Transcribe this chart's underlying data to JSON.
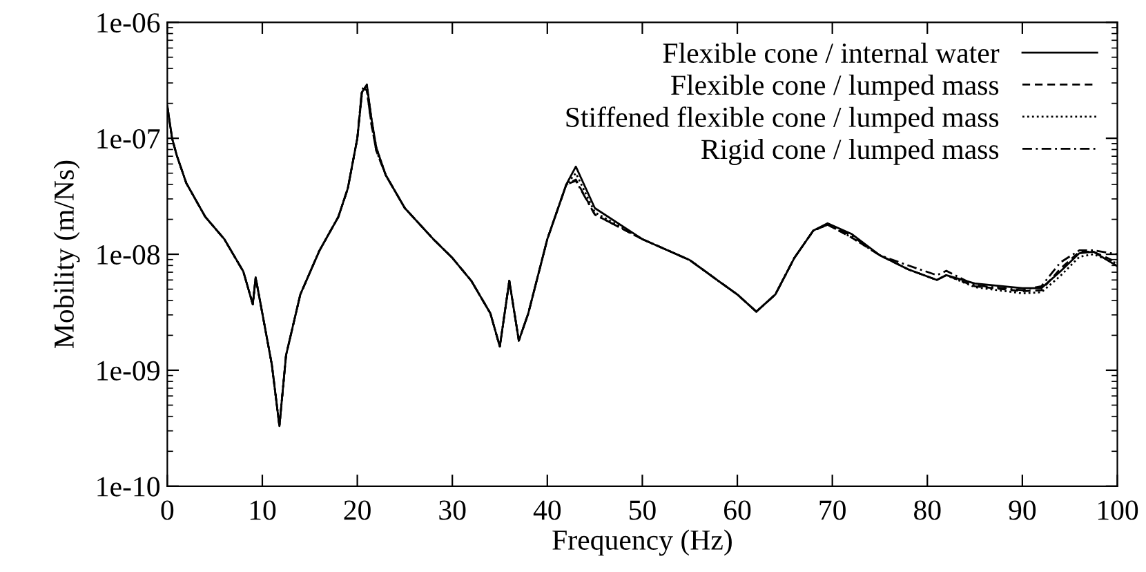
{
  "chart_data": {
    "type": "line",
    "xlabel": "Frequency (Hz)",
    "ylabel": "Mobility (m/Ns)",
    "log": "y",
    "grid": false,
    "legend": "top right",
    "marker": "none",
    "xlim": [
      0,
      100
    ],
    "xticks": [
      0,
      10,
      20,
      30,
      40,
      50,
      60,
      70,
      80,
      90,
      100
    ],
    "ylim": [
      1e-10,
      1e-06
    ],
    "yticks": [
      {
        "value": 1e-10,
        "label": "1e-10"
      },
      {
        "value": 1e-09,
        "label": "1e-09"
      },
      {
        "value": 1e-08,
        "label": "1e-08"
      },
      {
        "value": 1e-07,
        "label": "1e-07"
      },
      {
        "value": 1e-06,
        "label": "1e-06"
      }
    ],
    "x": [
      0,
      0.5,
      1,
      2,
      4,
      6,
      8,
      9,
      9.3,
      10,
      11,
      11.8,
      12.5,
      14,
      16,
      18,
      19,
      20,
      20.5,
      21,
      21.5,
      22,
      23,
      25,
      28,
      30,
      32,
      34,
      35,
      36,
      37,
      38,
      40,
      42,
      43,
      45,
      50,
      55,
      58,
      60,
      62,
      64,
      66,
      68,
      69.5,
      72,
      75,
      78,
      81,
      82,
      85,
      90,
      92,
      94,
      96,
      97.5,
      100
    ],
    "series": [
      {
        "name": "Flexible cone / internal water",
        "color": "#000000",
        "line_style": "solid",
        "values": [
          1.9e-07,
          1e-07,
          7.1e-08,
          4.1e-08,
          2.1e-08,
          1.35e-08,
          7.1e-09,
          3.7e-09,
          6.3e-09,
          3.1e-09,
          1.12e-09,
          3.3e-10,
          1.35e-09,
          4.5e-09,
          1.07e-08,
          2.1e-08,
          3.7e-08,
          1e-07,
          2.5e-07,
          2.9e-07,
          1.45e-07,
          8.3e-08,
          4.8e-08,
          2.5e-08,
          1.35e-08,
          9.3e-09,
          5.9e-09,
          3.1e-09,
          1.6e-09,
          5.9e-09,
          1.8e-09,
          3.1e-09,
          1.35e-08,
          4e-08,
          5.7e-08,
          2.5e-08,
          1.35e-08,
          8.9e-09,
          5.9e-09,
          4.5e-09,
          3.2e-09,
          4.5e-09,
          9.3e-09,
          1.6e-08,
          1.85e-08,
          1.5e-08,
          9.8e-09,
          7.4e-09,
          6e-09,
          6.6e-09,
          5.6e-09,
          5.1e-09,
          5.1e-09,
          7.1e-09,
          1.02e-08,
          1.05e-08,
          7.9e-09
        ]
      },
      {
        "name": "Flexible cone / lumped mass",
        "color": "#000000",
        "line_style": "dashed",
        "values": [
          1.9e-07,
          1e-07,
          7.1e-08,
          4.1e-08,
          2.1e-08,
          1.35e-08,
          7.1e-09,
          3.7e-09,
          6.3e-09,
          3.1e-09,
          1.12e-09,
          3.3e-10,
          1.35e-09,
          4.5e-09,
          1.07e-08,
          2.1e-08,
          3.7e-08,
          1e-07,
          2.7e-07,
          2.6e-07,
          1.3e-07,
          7.8e-08,
          4.8e-08,
          2.5e-08,
          1.35e-08,
          9.3e-09,
          5.9e-09,
          3.1e-09,
          1.6e-09,
          5.9e-09,
          1.8e-09,
          3.1e-09,
          1.35e-08,
          4e-08,
          4.4e-08,
          2.2e-08,
          1.35e-08,
          8.9e-09,
          5.9e-09,
          4.5e-09,
          3.2e-09,
          4.5e-09,
          9.3e-09,
          1.6e-08,
          1.8e-08,
          1.4e-08,
          9.8e-09,
          7.4e-09,
          6e-09,
          6.6e-09,
          5.3e-09,
          4.8e-09,
          4.9e-09,
          7.5e-09,
          1.05e-08,
          1.05e-08,
          8.5e-09
        ]
      },
      {
        "name": "Stiffened flexible cone / lumped mass",
        "color": "#000000",
        "line_style": "dotted",
        "values": [
          1.9e-07,
          1e-07,
          7.1e-08,
          4.1e-08,
          2.1e-08,
          1.35e-08,
          7.1e-09,
          3.7e-09,
          6.3e-09,
          3.1e-09,
          1.12e-09,
          3.3e-10,
          1.35e-09,
          4.5e-09,
          1.07e-08,
          2.1e-08,
          3.7e-08,
          1e-07,
          2.5e-07,
          2.9e-07,
          1.45e-07,
          8.3e-08,
          4.8e-08,
          2.5e-08,
          1.35e-08,
          9.3e-09,
          5.9e-09,
          3.1e-09,
          1.6e-09,
          5.9e-09,
          1.8e-09,
          3.1e-09,
          1.35e-08,
          4e-08,
          5e-08,
          2.3e-08,
          1.35e-08,
          8.9e-09,
          5.9e-09,
          4.5e-09,
          3.2e-09,
          4.5e-09,
          9.3e-09,
          1.6e-08,
          1.8e-08,
          1.4e-08,
          9.8e-09,
          7.4e-09,
          6e-09,
          6.6e-09,
          5.2e-09,
          4.6e-09,
          4.7e-09,
          6.5e-09,
          9.5e-09,
          1e-08,
          8.3e-09
        ]
      },
      {
        "name": "Rigid cone / lumped mass",
        "color": "#000000",
        "line_style": "dashdot",
        "values": [
          1.9e-07,
          1e-07,
          7.1e-08,
          4.1e-08,
          2.1e-08,
          1.35e-08,
          7.1e-09,
          3.7e-09,
          6.3e-09,
          3.1e-09,
          1.12e-09,
          3.3e-10,
          1.35e-09,
          4.5e-09,
          1.07e-08,
          2.1e-08,
          3.7e-08,
          1e-07,
          2.7e-07,
          2.6e-07,
          1.3e-07,
          7.8e-08,
          4.8e-08,
          2.5e-08,
          1.35e-08,
          9.3e-09,
          5.9e-09,
          3.1e-09,
          1.6e-09,
          5.9e-09,
          1.8e-09,
          3.1e-09,
          1.35e-08,
          4e-08,
          4.3e-08,
          2.2e-08,
          1.35e-08,
          8.9e-09,
          5.9e-09,
          4.5e-09,
          3.2e-09,
          4.5e-09,
          9.3e-09,
          1.6e-08,
          1.8e-08,
          1.45e-08,
          9.8e-09,
          8e-09,
          6.6e-09,
          7.2e-09,
          5.4e-09,
          4.9e-09,
          5.3e-09,
          8.5e-09,
          1.08e-08,
          1.08e-08,
          1e-08
        ]
      }
    ]
  }
}
